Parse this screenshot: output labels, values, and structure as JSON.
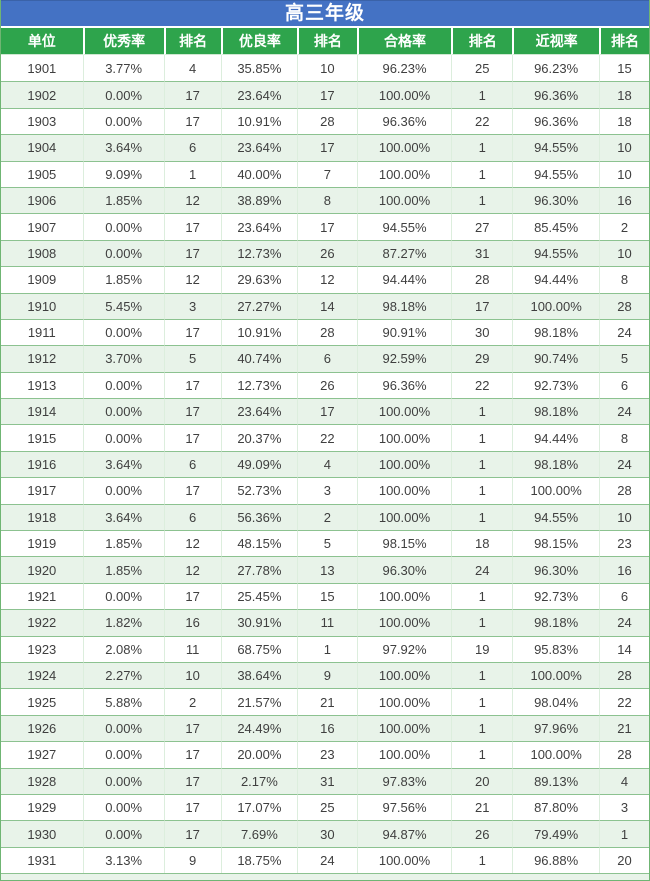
{
  "title": "高三年级",
  "colors": {
    "title_bg": "#4472C4",
    "header_bg": "#2EA44C",
    "row_alt_bg": "#E8F3E9",
    "grid_line": "#8CC290",
    "column_line": "#DCEEDD",
    "outer_border": "#6FB573",
    "text": "#3F3F3F",
    "header_text": "#FFFFFF"
  },
  "table": {
    "columns": [
      "单位",
      "优秀率",
      "排名",
      "优良率",
      "排名",
      "合格率",
      "排名",
      "近视率",
      "排名"
    ],
    "rows": [
      [
        "1901",
        "3.77%",
        "4",
        "35.85%",
        "10",
        "96.23%",
        "25",
        "96.23%",
        "15"
      ],
      [
        "1902",
        "0.00%",
        "17",
        "23.64%",
        "17",
        "100.00%",
        "1",
        "96.36%",
        "18"
      ],
      [
        "1903",
        "0.00%",
        "17",
        "10.91%",
        "28",
        "96.36%",
        "22",
        "96.36%",
        "18"
      ],
      [
        "1904",
        "3.64%",
        "6",
        "23.64%",
        "17",
        "100.00%",
        "1",
        "94.55%",
        "10"
      ],
      [
        "1905",
        "9.09%",
        "1",
        "40.00%",
        "7",
        "100.00%",
        "1",
        "94.55%",
        "10"
      ],
      [
        "1906",
        "1.85%",
        "12",
        "38.89%",
        "8",
        "100.00%",
        "1",
        "96.30%",
        "16"
      ],
      [
        "1907",
        "0.00%",
        "17",
        "23.64%",
        "17",
        "94.55%",
        "27",
        "85.45%",
        "2"
      ],
      [
        "1908",
        "0.00%",
        "17",
        "12.73%",
        "26",
        "87.27%",
        "31",
        "94.55%",
        "10"
      ],
      [
        "1909",
        "1.85%",
        "12",
        "29.63%",
        "12",
        "94.44%",
        "28",
        "94.44%",
        "8"
      ],
      [
        "1910",
        "5.45%",
        "3",
        "27.27%",
        "14",
        "98.18%",
        "17",
        "100.00%",
        "28"
      ],
      [
        "1911",
        "0.00%",
        "17",
        "10.91%",
        "28",
        "90.91%",
        "30",
        "98.18%",
        "24"
      ],
      [
        "1912",
        "3.70%",
        "5",
        "40.74%",
        "6",
        "92.59%",
        "29",
        "90.74%",
        "5"
      ],
      [
        "1913",
        "0.00%",
        "17",
        "12.73%",
        "26",
        "96.36%",
        "22",
        "92.73%",
        "6"
      ],
      [
        "1914",
        "0.00%",
        "17",
        "23.64%",
        "17",
        "100.00%",
        "1",
        "98.18%",
        "24"
      ],
      [
        "1915",
        "0.00%",
        "17",
        "20.37%",
        "22",
        "100.00%",
        "1",
        "94.44%",
        "8"
      ],
      [
        "1916",
        "3.64%",
        "6",
        "49.09%",
        "4",
        "100.00%",
        "1",
        "98.18%",
        "24"
      ],
      [
        "1917",
        "0.00%",
        "17",
        "52.73%",
        "3",
        "100.00%",
        "1",
        "100.00%",
        "28"
      ],
      [
        "1918",
        "3.64%",
        "6",
        "56.36%",
        "2",
        "100.00%",
        "1",
        "94.55%",
        "10"
      ],
      [
        "1919",
        "1.85%",
        "12",
        "48.15%",
        "5",
        "98.15%",
        "18",
        "98.15%",
        "23"
      ],
      [
        "1920",
        "1.85%",
        "12",
        "27.78%",
        "13",
        "96.30%",
        "24",
        "96.30%",
        "16"
      ],
      [
        "1921",
        "0.00%",
        "17",
        "25.45%",
        "15",
        "100.00%",
        "1",
        "92.73%",
        "6"
      ],
      [
        "1922",
        "1.82%",
        "16",
        "30.91%",
        "11",
        "100.00%",
        "1",
        "98.18%",
        "24"
      ],
      [
        "1923",
        "2.08%",
        "11",
        "68.75%",
        "1",
        "97.92%",
        "19",
        "95.83%",
        "14"
      ],
      [
        "1924",
        "2.27%",
        "10",
        "38.64%",
        "9",
        "100.00%",
        "1",
        "100.00%",
        "28"
      ],
      [
        "1925",
        "5.88%",
        "2",
        "21.57%",
        "21",
        "100.00%",
        "1",
        "98.04%",
        "22"
      ],
      [
        "1926",
        "0.00%",
        "17",
        "24.49%",
        "16",
        "100.00%",
        "1",
        "97.96%",
        "21"
      ],
      [
        "1927",
        "0.00%",
        "17",
        "20.00%",
        "23",
        "100.00%",
        "1",
        "100.00%",
        "28"
      ],
      [
        "1928",
        "0.00%",
        "17",
        "2.17%",
        "31",
        "97.83%",
        "20",
        "89.13%",
        "4"
      ],
      [
        "1929",
        "0.00%",
        "17",
        "17.07%",
        "25",
        "97.56%",
        "21",
        "87.80%",
        "3"
      ],
      [
        "1930",
        "0.00%",
        "17",
        "7.69%",
        "30",
        "94.87%",
        "26",
        "79.49%",
        "1"
      ],
      [
        "1931",
        "3.13%",
        "9",
        "18.75%",
        "24",
        "100.00%",
        "1",
        "96.88%",
        "20"
      ]
    ]
  }
}
